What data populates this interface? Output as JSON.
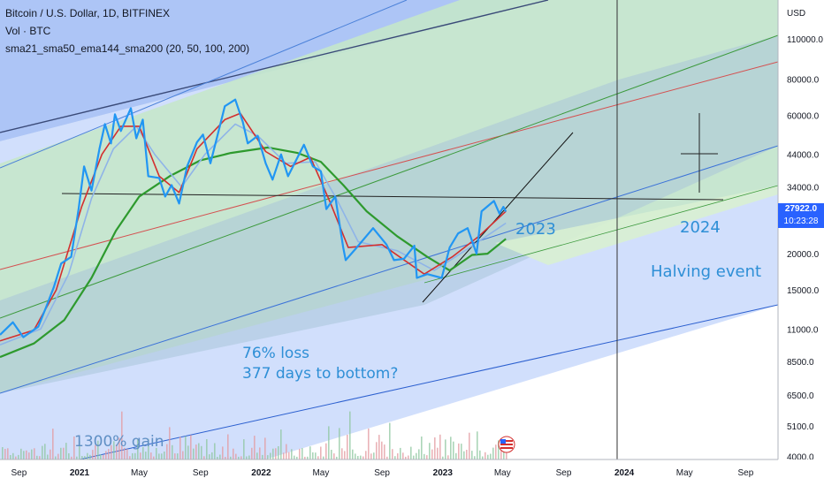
{
  "header": {
    "title_line": "Bitcoin / U.S. Dollar, 1D, BITFINEX",
    "volume_line": "Vol · BTC",
    "indicator_line": "sma21_sma50_ema144_sma200 (20, 50, 100, 200)"
  },
  "annotations": {
    "year_2023": "2023",
    "year_2024": "2024",
    "halving": "Halving event",
    "loss_line1": "76% loss",
    "loss_line2": "377 days to bottom?",
    "gain": "1300% gain"
  },
  "price_tag": {
    "price": "27922.0",
    "countdown": "10:23:28"
  },
  "colors": {
    "price_line": "#2196f3",
    "ma_red": "#d32f2f",
    "ma_green": "#2e9a2e",
    "ma_light": "#8fb4e8",
    "accent": "#2962ff",
    "annotation": "#2e8fd6"
  },
  "chart_data": {
    "type": "line",
    "title": "Bitcoin / U.S. Dollar, 1D, BITFINEX",
    "y_axis_unit": "USD",
    "y_scale": "log",
    "ylim": [
      3900,
      150000
    ],
    "xlim": [
      "2020-07-25",
      "2024-11-05"
    ],
    "grid": false,
    "y_ticks": [
      4000,
      5100,
      6500,
      8500,
      11000,
      15000,
      20000,
      27922,
      34000,
      44000,
      60000,
      80000,
      110000
    ],
    "y_tick_labels": [
      "4000.0",
      "5100.0",
      "6500.0",
      "8500.0",
      "11000.0",
      "15000.0",
      "20000.0",
      "27922.0",
      "34000.0",
      "44000.0",
      "60000.0",
      "80000.0",
      "110000.0"
    ],
    "x_ticks": [
      "2020-09-01",
      "2021-01-01",
      "2021-05-01",
      "2021-09-01",
      "2022-01-01",
      "2022-05-01",
      "2022-09-01",
      "2023-01-01",
      "2023-05-01",
      "2023-09-01",
      "2024-01-01",
      "2024-05-01",
      "2024-09-01"
    ],
    "x_tick_labels": [
      "Sep",
      "2021",
      "May",
      "Sep",
      "2022",
      "May",
      "Sep",
      "2023",
      "May",
      "Sep",
      "2024",
      "May",
      "Sep"
    ],
    "series": [
      {
        "values": [
          {
            "x": "2020-07-25",
            "y": 10500
          },
          {
            "x": "2020-08-20",
            "y": 11600
          },
          {
            "x": "2020-09-10",
            "y": 10300
          },
          {
            "x": "2020-10-10",
            "y": 11200
          },
          {
            "x": "2020-10-25",
            "y": 13000
          },
          {
            "x": "2020-11-10",
            "y": 15300
          },
          {
            "x": "2020-11-25",
            "y": 18500
          },
          {
            "x": "2020-12-15",
            "y": 19500
          },
          {
            "x": "2020-12-30",
            "y": 28500
          },
          {
            "x": "2021-01-10",
            "y": 40000
          },
          {
            "x": "2021-01-25",
            "y": 33000
          },
          {
            "x": "2021-02-10",
            "y": 46000
          },
          {
            "x": "2021-02-21",
            "y": 56000
          },
          {
            "x": "2021-03-05",
            "y": 48000
          },
          {
            "x": "2021-03-13",
            "y": 60500
          },
          {
            "x": "2021-03-25",
            "y": 53000
          },
          {
            "x": "2021-04-14",
            "y": 63500
          },
          {
            "x": "2021-04-25",
            "y": 50000
          },
          {
            "x": "2021-05-08",
            "y": 58000
          },
          {
            "x": "2021-05-19",
            "y": 37000
          },
          {
            "x": "2021-06-10",
            "y": 36500
          },
          {
            "x": "2021-06-22",
            "y": 31500
          },
          {
            "x": "2021-07-05",
            "y": 34500
          },
          {
            "x": "2021-07-20",
            "y": 29800
          },
          {
            "x": "2021-08-05",
            "y": 40000
          },
          {
            "x": "2021-08-25",
            "y": 48500
          },
          {
            "x": "2021-09-06",
            "y": 51500
          },
          {
            "x": "2021-09-21",
            "y": 41000
          },
          {
            "x": "2021-10-05",
            "y": 51000
          },
          {
            "x": "2021-10-20",
            "y": 64500
          },
          {
            "x": "2021-11-10",
            "y": 68000
          },
          {
            "x": "2021-11-25",
            "y": 57000
          },
          {
            "x": "2021-12-05",
            "y": 48000
          },
          {
            "x": "2021-12-25",
            "y": 51000
          },
          {
            "x": "2022-01-10",
            "y": 41000
          },
          {
            "x": "2022-01-24",
            "y": 36000
          },
          {
            "x": "2022-02-10",
            "y": 44000
          },
          {
            "x": "2022-02-24",
            "y": 37000
          },
          {
            "x": "2022-03-28",
            "y": 47500
          },
          {
            "x": "2022-04-15",
            "y": 40000
          },
          {
            "x": "2022-05-01",
            "y": 38500
          },
          {
            "x": "2022-05-12",
            "y": 28500
          },
          {
            "x": "2022-05-30",
            "y": 31500
          },
          {
            "x": "2022-06-15",
            "y": 21000
          },
          {
            "x": "2022-06-20",
            "y": 19000
          },
          {
            "x": "2022-07-10",
            "y": 20800
          },
          {
            "x": "2022-08-14",
            "y": 24500
          },
          {
            "x": "2022-09-10",
            "y": 21500
          },
          {
            "x": "2022-09-25",
            "y": 19000
          },
          {
            "x": "2022-10-15",
            "y": 19200
          },
          {
            "x": "2022-11-05",
            "y": 21300
          },
          {
            "x": "2022-11-10",
            "y": 16500
          },
          {
            "x": "2022-12-01",
            "y": 17000
          },
          {
            "x": "2022-12-30",
            "y": 16500
          },
          {
            "x": "2023-01-15",
            "y": 21000
          },
          {
            "x": "2023-02-01",
            "y": 23500
          },
          {
            "x": "2023-02-20",
            "y": 24500
          },
          {
            "x": "2023-03-10",
            "y": 20000
          },
          {
            "x": "2023-03-20",
            "y": 28000
          },
          {
            "x": "2023-04-14",
            "y": 30400
          },
          {
            "x": "2023-04-25",
            "y": 27500
          },
          {
            "x": "2023-05-03",
            "y": 29000
          },
          {
            "x": "2023-05-08",
            "y": 27922
          }
        ]
      },
      {
        "values": [
          {
            "x": "2020-07-25",
            "y": 10000
          },
          {
            "x": "2020-10-01",
            "y": 10900
          },
          {
            "x": "2020-11-15",
            "y": 15000
          },
          {
            "x": "2021-01-05",
            "y": 29000
          },
          {
            "x": "2021-02-15",
            "y": 44000
          },
          {
            "x": "2021-03-25",
            "y": 55000
          },
          {
            "x": "2021-05-01",
            "y": 55000
          },
          {
            "x": "2021-06-10",
            "y": 37000
          },
          {
            "x": "2021-07-20",
            "y": 32500
          },
          {
            "x": "2021-08-25",
            "y": 46000
          },
          {
            "x": "2021-10-20",
            "y": 58000
          },
          {
            "x": "2021-11-20",
            "y": 61000
          },
          {
            "x": "2022-01-10",
            "y": 45000
          },
          {
            "x": "2022-03-01",
            "y": 40000
          },
          {
            "x": "2022-04-10",
            "y": 43000
          },
          {
            "x": "2022-05-20",
            "y": 30000
          },
          {
            "x": "2022-06-25",
            "y": 21000
          },
          {
            "x": "2022-09-01",
            "y": 21500
          },
          {
            "x": "2022-11-25",
            "y": 17000
          },
          {
            "x": "2023-01-20",
            "y": 19500
          },
          {
            "x": "2023-03-15",
            "y": 23000
          },
          {
            "x": "2023-05-08",
            "y": 28000
          }
        ]
      },
      {
        "values": [
          {
            "x": "2020-07-25",
            "y": 9700
          },
          {
            "x": "2020-10-15",
            "y": 11000
          },
          {
            "x": "2020-12-10",
            "y": 17000
          },
          {
            "x": "2021-01-25",
            "y": 31000
          },
          {
            "x": "2021-03-10",
            "y": 46000
          },
          {
            "x": "2021-04-25",
            "y": 55000
          },
          {
            "x": "2021-06-01",
            "y": 44000
          },
          {
            "x": "2021-07-25",
            "y": 34000
          },
          {
            "x": "2021-09-10",
            "y": 44000
          },
          {
            "x": "2021-11-10",
            "y": 56000
          },
          {
            "x": "2021-12-25",
            "y": 51000
          },
          {
            "x": "2022-02-20",
            "y": 41000
          },
          {
            "x": "2022-04-20",
            "y": 41500
          },
          {
            "x": "2022-06-01",
            "y": 31000
          },
          {
            "x": "2022-07-15",
            "y": 22000
          },
          {
            "x": "2022-10-01",
            "y": 20500
          },
          {
            "x": "2022-12-15",
            "y": 17500
          },
          {
            "x": "2023-02-15",
            "y": 20500
          },
          {
            "x": "2023-05-08",
            "y": 25500
          }
        ]
      },
      {
        "values": [
          {
            "x": "2020-07-25",
            "y": 8800
          },
          {
            "x": "2020-10-01",
            "y": 9800
          },
          {
            "x": "2020-12-01",
            "y": 11800
          },
          {
            "x": "2021-01-25",
            "y": 16500
          },
          {
            "x": "2021-03-15",
            "y": 24000
          },
          {
            "x": "2021-05-01",
            "y": 31500
          },
          {
            "x": "2021-07-01",
            "y": 37000
          },
          {
            "x": "2021-09-01",
            "y": 42000
          },
          {
            "x": "2021-11-01",
            "y": 44500
          },
          {
            "x": "2022-01-15",
            "y": 46500
          },
          {
            "x": "2022-03-15",
            "y": 44500
          },
          {
            "x": "2022-05-01",
            "y": 41500
          },
          {
            "x": "2022-06-15",
            "y": 34500
          },
          {
            "x": "2022-08-01",
            "y": 28000
          },
          {
            "x": "2022-10-01",
            "y": 23000
          },
          {
            "x": "2022-12-01",
            "y": 19500
          },
          {
            "x": "2023-01-15",
            "y": 17500
          },
          {
            "x": "2023-03-01",
            "y": 19800
          },
          {
            "x": "2023-04-01",
            "y": 20000
          },
          {
            "x": "2023-05-08",
            "y": 22500
          }
        ]
      }
    ]
  }
}
